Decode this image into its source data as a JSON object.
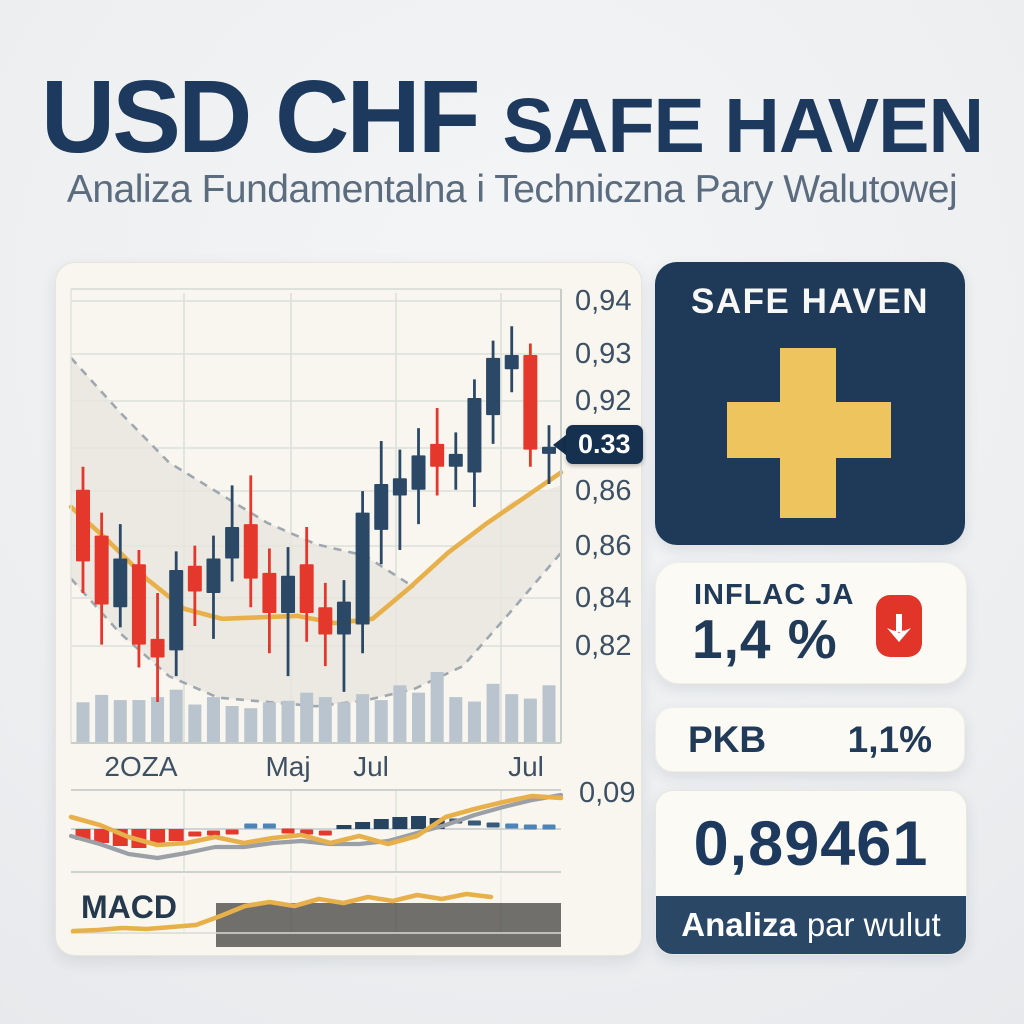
{
  "header": {
    "title_main": "USD CHF",
    "title_accent": "SAFE HAVEN",
    "subtitle": "Analiza Fundamentalna i Techniczna Pary Walutowej"
  },
  "sidebar": {
    "safe_haven": {
      "label": "SAFE HAVEN",
      "icon": "swiss-cross-icon"
    },
    "inflation": {
      "label": "INFLAC JA",
      "value": "1,4 %",
      "icon": "down-arrow-icon"
    },
    "gdp": {
      "label": "PKB",
      "value": "1,1%"
    },
    "price": {
      "value": "0,89461",
      "footer_bold": "Analiza",
      "footer_rest": "par wulut"
    }
  },
  "colors": {
    "navy": "#1d3a5e",
    "candle_up": "#2b4967",
    "candle_down": "#e5382d",
    "gold": "#e7b04a",
    "band_fill": "#e7e6df",
    "band_dash": "#9fa8b0",
    "volume": "#b9c4ce",
    "signal_gray": "#9aa0a6",
    "tag_bg": "#16304f",
    "hist_dash_blue": "#4d84b8",
    "hist_solid_navy": "#264360",
    "hist_dash_navy": "#36597c",
    "badge_red": "#e2352a",
    "cross_gold": "#eec45f",
    "grid": "#dcdfda"
  },
  "chart_data": {
    "type": "candlestick",
    "y_axis_labels": [
      "0,94",
      "0,93",
      "0,92",
      "0,86",
      "0,86",
      "0,84",
      "0,82"
    ],
    "x_axis_labels": [
      "2OZA",
      "Maj",
      "Jul",
      "Jul"
    ],
    "price_tag": "0.33",
    "macd_panel_value": "0,09",
    "macd_title": "MACD",
    "y_range": [
      0.808,
      0.944
    ],
    "candles": [
      {
        "o": 0.874,
        "h": 0.882,
        "l": 0.838,
        "c": 0.849
      },
      {
        "o": 0.858,
        "h": 0.866,
        "l": 0.82,
        "c": 0.834
      },
      {
        "o": 0.833,
        "h": 0.862,
        "l": 0.826,
        "c": 0.85
      },
      {
        "o": 0.848,
        "h": 0.853,
        "l": 0.812,
        "c": 0.82
      },
      {
        "o": 0.822,
        "h": 0.838,
        "l": 0.8,
        "c": 0.8155
      },
      {
        "o": 0.818,
        "h": 0.8525,
        "l": 0.809,
        "c": 0.846
      },
      {
        "o": 0.8475,
        "h": 0.8545,
        "l": 0.8265,
        "c": 0.8385
      },
      {
        "o": 0.838,
        "h": 0.858,
        "l": 0.822,
        "c": 0.85
      },
      {
        "o": 0.85,
        "h": 0.8755,
        "l": 0.842,
        "c": 0.861
      },
      {
        "o": 0.862,
        "h": 0.879,
        "l": 0.833,
        "c": 0.843
      },
      {
        "o": 0.845,
        "h": 0.8535,
        "l": 0.817,
        "c": 0.831
      },
      {
        "o": 0.831,
        "h": 0.854,
        "l": 0.809,
        "c": 0.844
      },
      {
        "o": 0.848,
        "h": 0.861,
        "l": 0.821,
        "c": 0.831
      },
      {
        "o": 0.833,
        "h": 0.8415,
        "l": 0.8125,
        "c": 0.8235
      },
      {
        "o": 0.8235,
        "h": 0.8425,
        "l": 0.8035,
        "c": 0.835
      },
      {
        "o": 0.827,
        "h": 0.8735,
        "l": 0.817,
        "c": 0.866
      },
      {
        "o": 0.86,
        "h": 0.891,
        "l": 0.848,
        "c": 0.876
      },
      {
        "o": 0.872,
        "h": 0.888,
        "l": 0.853,
        "c": 0.878
      },
      {
        "o": 0.874,
        "h": 0.8955,
        "l": 0.862,
        "c": 0.886
      },
      {
        "o": 0.89,
        "h": 0.9025,
        "l": 0.872,
        "c": 0.882
      },
      {
        "o": 0.882,
        "h": 0.894,
        "l": 0.874,
        "c": 0.8865
      },
      {
        "o": 0.88,
        "h": 0.9125,
        "l": 0.868,
        "c": 0.906
      },
      {
        "o": 0.9,
        "h": 0.926,
        "l": 0.89,
        "c": 0.92
      },
      {
        "o": 0.916,
        "h": 0.931,
        "l": 0.908,
        "c": 0.921
      },
      {
        "o": 0.921,
        "h": 0.925,
        "l": 0.882,
        "c": 0.888
      },
      {
        "o": 0.8865,
        "h": 0.8965,
        "l": 0.876,
        "c": 0.889
      }
    ],
    "volume_norm": [
      0.55,
      0.65,
      0.58,
      0.58,
      0.62,
      0.72,
      0.52,
      0.62,
      0.5,
      0.47,
      0.55,
      0.57,
      0.68,
      0.62,
      0.55,
      0.66,
      0.58,
      0.78,
      0.68,
      0.96,
      0.62,
      0.56,
      0.8,
      0.66,
      0.6,
      0.78
    ],
    "bollinger_upper": [
      0.92,
      0.901,
      0.8835,
      0.873,
      0.8625,
      0.855,
      0.851,
      0.84,
      0.856,
      0.87,
      0.8755
    ],
    "bollinger_lower": [
      0.843,
      0.824,
      0.809,
      0.8015,
      0.8,
      0.7985,
      0.8005,
      0.8045,
      0.8125,
      0.832,
      0.852
    ],
    "bollinger_upper_visible_points": 8,
    "moving_average": [
      0.868,
      0.856,
      0.843,
      0.8325,
      0.829,
      0.8295,
      0.83,
      0.8275,
      0.829,
      0.84,
      0.852,
      0.862,
      0.871,
      0.88
    ],
    "macd": {
      "histogram": [
        {
          "v": -11,
          "s": "solid-red"
        },
        {
          "v": -14,
          "s": "solid-red"
        },
        {
          "v": -17,
          "s": "solid-red"
        },
        {
          "v": -19,
          "s": "solid-red"
        },
        {
          "v": -16,
          "s": "solid-red"
        },
        {
          "v": -12,
          "s": "solid-red"
        },
        {
          "v": -5,
          "s": "dash-red"
        },
        {
          "v": -4,
          "s": "dash-red"
        },
        {
          "v": -3,
          "s": "dash-red"
        },
        {
          "v": 3,
          "s": "dash-blue"
        },
        {
          "v": 3,
          "s": "dash-blue"
        },
        {
          "v": -2,
          "s": "dash-red"
        },
        {
          "v": -3,
          "s": "dash-red"
        },
        {
          "v": -4,
          "s": "dash-red"
        },
        {
          "v": 4,
          "s": "solid-navy"
        },
        {
          "v": 7,
          "s": "solid-navy"
        },
        {
          "v": 10,
          "s": "solid-navy"
        },
        {
          "v": 12,
          "s": "solid-navy"
        },
        {
          "v": 13,
          "s": "solid-navy"
        },
        {
          "v": 11,
          "s": "solid-navy"
        },
        {
          "v": 8,
          "s": "dash-navy"
        },
        {
          "v": 6,
          "s": "dash-navy"
        },
        {
          "v": 4,
          "s": "dash-navy"
        },
        {
          "v": 3,
          "s": "dash-blue"
        },
        {
          "v": 2,
          "s": "dash-blue"
        },
        {
          "v": 2,
          "s": "dash-blue"
        }
      ],
      "macd_line_offsets": [
        12,
        4,
        -8,
        -16,
        -14,
        -8,
        -14,
        -9,
        -6,
        -14,
        -7,
        -15,
        -7,
        12,
        20,
        27,
        33,
        31
      ],
      "signal_line_offsets": [
        -7,
        -15,
        -25,
        -29,
        -24,
        -18,
        -18,
        -14,
        -12,
        -15,
        -15,
        -12,
        -4,
        4,
        14,
        22,
        29,
        34
      ],
      "mini_line_y": [
        930,
        929,
        927,
        928,
        926,
        924,
        915,
        905,
        901,
        905,
        898,
        902,
        896,
        900,
        894,
        898,
        893,
        896
      ]
    }
  }
}
